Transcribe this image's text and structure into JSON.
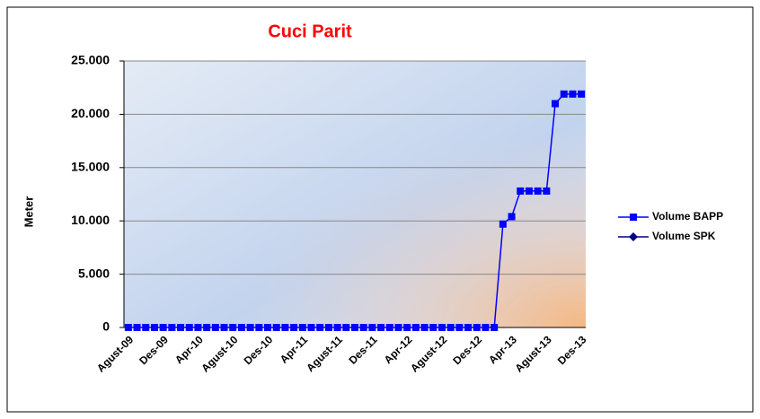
{
  "chart_data": {
    "type": "line",
    "title": "Cuci Parit",
    "y_label": "Meter",
    "categories": [
      "Agust-09",
      null,
      null,
      null,
      "Des-09",
      null,
      null,
      null,
      "Apr-10",
      null,
      null,
      null,
      "Agust-10",
      null,
      null,
      null,
      "Des-10",
      null,
      null,
      null,
      "Apr-11",
      null,
      null,
      null,
      "Agust-11",
      null,
      null,
      null,
      "Des-11",
      null,
      null,
      null,
      "Apr-12",
      null,
      null,
      null,
      "Agust-12",
      null,
      null,
      null,
      "Des-12",
      null,
      null,
      null,
      "Apr-13",
      null,
      null,
      null,
      "Agust-13",
      null,
      null,
      null,
      "Des-13"
    ],
    "series": [
      {
        "name": "Volume BAPP",
        "color": "#0000ff",
        "marker": "square",
        "values": [
          0,
          0,
          0,
          0,
          0,
          0,
          0,
          0,
          0,
          0,
          0,
          0,
          0,
          0,
          0,
          0,
          0,
          0,
          0,
          0,
          0,
          0,
          0,
          0,
          0,
          0,
          0,
          0,
          0,
          0,
          0,
          0,
          0,
          0,
          0,
          0,
          0,
          0,
          0,
          0,
          0,
          0,
          0,
          9700,
          10400,
          12800,
          12800,
          12800,
          12800,
          21000,
          21900,
          21900,
          21900
        ]
      },
      {
        "name": "Volume SPK",
        "color": "#000080",
        "marker": "diamond",
        "values": [
          null,
          null,
          null,
          null,
          null,
          null,
          null,
          null,
          null,
          null,
          null,
          null,
          null,
          null,
          null,
          null,
          null,
          null,
          null,
          null,
          null,
          null,
          null,
          null,
          null,
          null,
          null,
          null,
          null,
          null,
          null,
          null,
          null,
          null,
          null,
          null,
          null,
          null,
          null,
          null,
          null,
          null,
          null,
          null,
          null,
          null,
          null,
          null,
          null,
          null,
          null,
          null,
          null
        ]
      }
    ],
    "ylim": [
      0,
      25000
    ],
    "yticks": [
      0,
      {
        "value": 5000,
        "label": "5.000"
      },
      {
        "value": 10000,
        "label": "10.000"
      },
      {
        "value": 15000,
        "label": "15.000"
      },
      {
        "value": 20000,
        "label": "20.000"
      },
      {
        "value": 25000,
        "label": "25.000"
      }
    ],
    "grid": true,
    "legend": "right"
  }
}
